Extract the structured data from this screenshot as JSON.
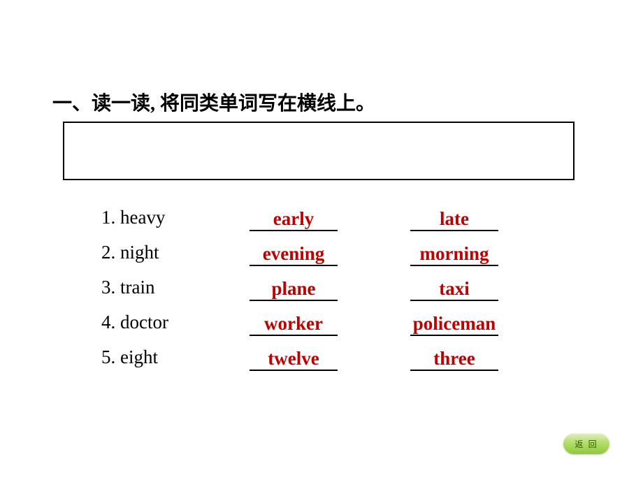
{
  "heading": "一、读一读, 将同类单词写在横线上。",
  "rows": [
    {
      "label": "1. heavy",
      "a1": "early",
      "a2": "late"
    },
    {
      "label": "2. night",
      "a1": "evening",
      "a2": "morning"
    },
    {
      "label": "3. train",
      "a1": "plane",
      "a2": "taxi"
    },
    {
      "label": "4. doctor",
      "a1": "worker",
      "a2": "policeman"
    },
    {
      "label": "5. eight",
      "a1": "twelve",
      "a2": "three"
    }
  ],
  "button": {
    "back_label": "返 回"
  },
  "colors": {
    "answer": "#bf0000",
    "text": "#000000",
    "background": "#ffffff"
  },
  "typography": {
    "heading_fontsize": 28,
    "body_fontsize": 27,
    "answer_fontweight": "bold"
  }
}
